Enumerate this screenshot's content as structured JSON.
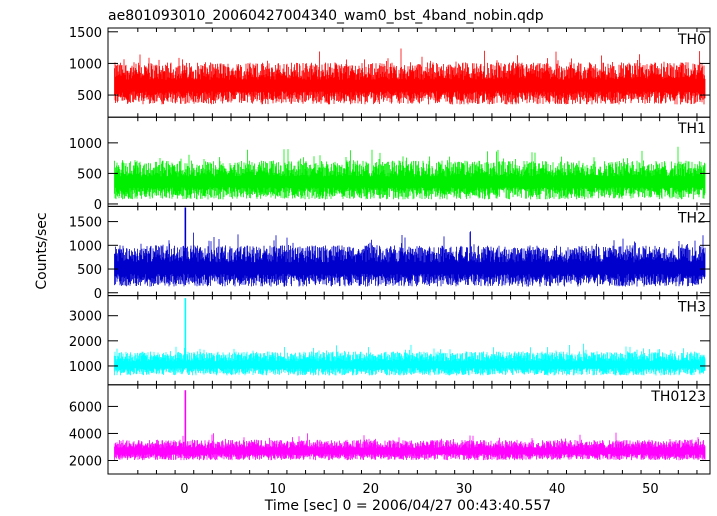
{
  "chart_data": {
    "type": "line",
    "title": "ae801093010_20060427004340_wam0_bst_4band_nobin.qdp",
    "xlabel": "Time [sec] 0 = 2006/04/27 00:43:40.557",
    "ylabel": "Counts/sec",
    "xlim": [
      -8.2,
      56.4
    ],
    "x_ticks": [
      0,
      10,
      20,
      30,
      40,
      50
    ],
    "grid": false,
    "series": [
      {
        "name": "TH0",
        "color": "#ff0000",
        "ylim": [
          150,
          1560
        ],
        "y_ticks": [
          500,
          1000,
          1500
        ],
        "baseline": 650,
        "noise": 230,
        "spike_time": null,
        "spike_value": null
      },
      {
        "name": "TH1",
        "color": "#00ee00",
        "ylim": [
          -40,
          1420
        ],
        "y_ticks": [
          0,
          500,
          1000
        ],
        "baseline": 360,
        "noise": 220,
        "spike_time": null,
        "spike_value": null
      },
      {
        "name": "TH2",
        "color": "#0000cc",
        "ylim": [
          -60,
          1820
        ],
        "y_ticks": [
          0,
          500,
          1000,
          1500
        ],
        "baseline": 520,
        "noise": 300,
        "spike_time": 0.1,
        "spike_value": 1800
      },
      {
        "name": "TH3",
        "color": "#00ffff",
        "ylim": [
          250,
          3800
        ],
        "y_ticks": [
          1000,
          2000,
          3000
        ],
        "baseline": 1050,
        "noise": 330,
        "spike_time": 0.1,
        "spike_value": 3700
      },
      {
        "name": "TH0123",
        "color": "#ff00ff",
        "ylim": [
          1000,
          7600
        ],
        "y_ticks": [
          2000,
          4000,
          6000
        ],
        "baseline": 2700,
        "noise": 520,
        "spike_time": 0.1,
        "spike_value": 7200
      }
    ]
  }
}
